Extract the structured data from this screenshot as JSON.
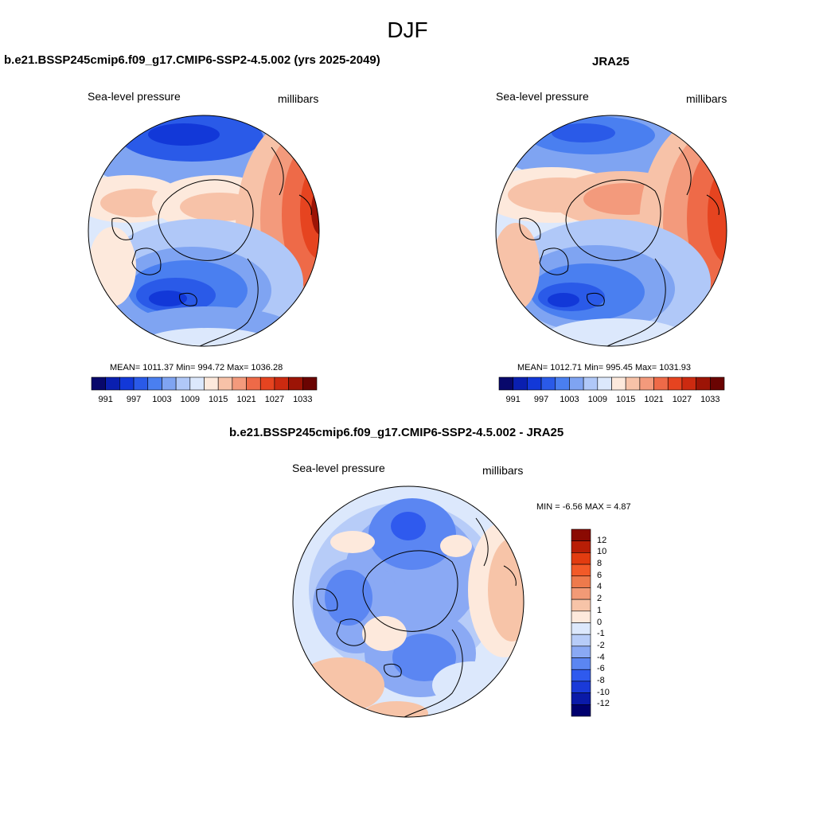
{
  "season": "DJF",
  "panels": {
    "model": {
      "title": "b.e21.BSSP245cmip6.f09_g17.CMIP6-SSP2-4.5.002 (yrs 2025-2049)",
      "variable": "Sea-level pressure",
      "units": "millibars",
      "stats": "MEAN= 1011.37  Min= 994.72  Max= 1036.28"
    },
    "obs": {
      "title": "JRA25",
      "variable": "Sea-level pressure",
      "units": "millibars",
      "stats": "MEAN= 1012.71  Min= 995.45  Max= 1031.93"
    },
    "diff": {
      "title": "b.e21.BSSP245cmip6.f09_g17.CMIP6-SSP2-4.5.002 - JRA25",
      "variable": "Sea-level pressure",
      "units": "millibars",
      "stats": "MIN =  -6.56 MAX =   4.87"
    }
  },
  "abs_colorbar": {
    "colors": [
      "#08086b",
      "#0a1fb0",
      "#1238d8",
      "#2a5ae8",
      "#4a7ff0",
      "#7fa4f2",
      "#b0c8f8",
      "#dce8fc",
      "#fde9dc",
      "#f7c2a8",
      "#f39a7c",
      "#ee6a48",
      "#e64420",
      "#cc2a10",
      "#9c1406",
      "#6a0402"
    ],
    "tick_labels": [
      "991",
      "997",
      "1003",
      "1009",
      "1015",
      "1021",
      "1027",
      "1033"
    ]
  },
  "diff_colorbar": {
    "colors": [
      "#00006e",
      "#0a1aa8",
      "#1a3ad8",
      "#2f5aee",
      "#5b86f2",
      "#8aa9f4",
      "#b7ccf8",
      "#dce8fc",
      "#fde9dc",
      "#f7c4a8",
      "#f29a76",
      "#ee7a4c",
      "#f25a28",
      "#e23c10",
      "#b81e06",
      "#8a0a02"
    ],
    "tick_labels": [
      "12",
      "10",
      "8",
      "6",
      "4",
      "2",
      "1",
      "0",
      "-1",
      "-2",
      "-4",
      "-6",
      "-8",
      "-10",
      "-12"
    ]
  }
}
